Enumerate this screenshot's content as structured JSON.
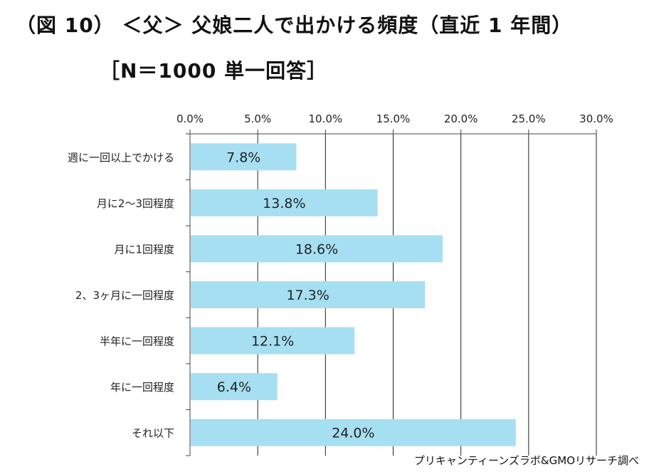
{
  "title": "（図 10） ＜父＞ 父娘二人で出かける頻度（直近 1 年間）",
  "subtitle": "［N＝1000 単一回答］",
  "source": "プリキャンティーンズラボ&GMOリサーチ調べ",
  "colors": {
    "bar": "#a6dff2",
    "axis": "#444444",
    "grid": "#222222"
  },
  "chart_data": {
    "type": "bar",
    "orientation": "horizontal",
    "categories": [
      "週に一回以上でかける",
      "月に2～3回程度",
      "月に1回程度",
      "2、3ヶ月に一回程度",
      "半年に一回程度",
      "年に一回程度",
      "それ以下"
    ],
    "values": [
      7.8,
      13.8,
      18.6,
      17.3,
      12.1,
      6.4,
      24.0
    ],
    "value_labels": [
      "7.8%",
      "13.8%",
      "18.6%",
      "17.3%",
      "12.1%",
      "6.4%",
      "24.0%"
    ],
    "xlim": [
      0,
      30
    ],
    "ticks": [
      0,
      5,
      10,
      15,
      20,
      25,
      30
    ],
    "tick_labels": [
      "0.0%",
      "5.0%",
      "10.0%",
      "15.0%",
      "20.0%",
      "25.0%",
      "30.0%"
    ],
    "axis_position": "top",
    "grid": true,
    "legend": "none"
  }
}
